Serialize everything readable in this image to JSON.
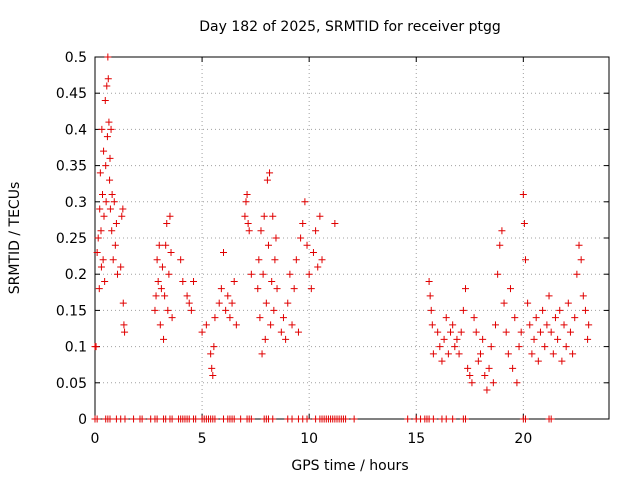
{
  "chart_data": {
    "type": "scatter",
    "title": "Day 182 of 2025, SRMTID for receiver ptgg",
    "xlabel": "GPS time / hours",
    "ylabel": "SRMTID / TECUs",
    "xlim": [
      0,
      24
    ],
    "ylim": [
      0,
      0.5
    ],
    "xticks": [
      0,
      5,
      10,
      15,
      20
    ],
    "xtick_labels": [
      "0",
      "5",
      "10",
      "15",
      "20"
    ],
    "yticks": [
      0,
      0.05,
      0.1,
      0.15,
      0.2,
      0.25,
      0.3,
      0.35,
      0.4,
      0.45,
      0.5
    ],
    "ytick_labels": [
      "0",
      "0.05",
      "0.1",
      "0.15",
      "0.2",
      "0.25",
      "0.3",
      "0.35",
      "0.4",
      "0.45",
      "0.5"
    ],
    "grid": true,
    "marker": "+",
    "color": "#e00000",
    "series": [
      {
        "name": "SRMTID",
        "points": [
          [
            0.0,
            0.1
          ],
          [
            0.05,
            0.1
          ],
          [
            0.1,
            0.23
          ],
          [
            0.15,
            0.25
          ],
          [
            0.2,
            0.18
          ],
          [
            0.22,
            0.29
          ],
          [
            0.25,
            0.34
          ],
          [
            0.28,
            0.26
          ],
          [
            0.3,
            0.21
          ],
          [
            0.32,
            0.4
          ],
          [
            0.35,
            0.31
          ],
          [
            0.38,
            0.22
          ],
          [
            0.4,
            0.37
          ],
          [
            0.42,
            0.28
          ],
          [
            0.45,
            0.19
          ],
          [
            0.48,
            0.44
          ],
          [
            0.5,
            0.35
          ],
          [
            0.52,
            0.3
          ],
          [
            0.55,
            0.46
          ],
          [
            0.58,
            0.39
          ],
          [
            0.6,
            0.5
          ],
          [
            0.62,
            0.47
          ],
          [
            0.65,
            0.41
          ],
          [
            0.68,
            0.33
          ],
          [
            0.7,
            0.36
          ],
          [
            0.72,
            0.29
          ],
          [
            0.75,
            0.4
          ],
          [
            0.78,
            0.26
          ],
          [
            0.8,
            0.31
          ],
          [
            0.85,
            0.22
          ],
          [
            0.9,
            0.3
          ],
          [
            0.95,
            0.24
          ],
          [
            1.0,
            0.27
          ],
          [
            1.05,
            0.2
          ],
          [
            1.2,
            0.21
          ],
          [
            1.25,
            0.28
          ],
          [
            1.3,
            0.29
          ],
          [
            1.32,
            0.16
          ],
          [
            1.35,
            0.13
          ],
          [
            1.38,
            0.12
          ],
          [
            2.8,
            0.15
          ],
          [
            2.85,
            0.17
          ],
          [
            2.9,
            0.22
          ],
          [
            2.95,
            0.19
          ],
          [
            3.0,
            0.24
          ],
          [
            3.05,
            0.13
          ],
          [
            3.1,
            0.18
          ],
          [
            3.15,
            0.21
          ],
          [
            3.2,
            0.11
          ],
          [
            3.25,
            0.17
          ],
          [
            3.3,
            0.24
          ],
          [
            3.35,
            0.27
          ],
          [
            3.4,
            0.15
          ],
          [
            3.45,
            0.2
          ],
          [
            3.5,
            0.28
          ],
          [
            3.55,
            0.23
          ],
          [
            3.6,
            0.14
          ],
          [
            4.0,
            0.22
          ],
          [
            4.1,
            0.19
          ],
          [
            4.3,
            0.17
          ],
          [
            4.4,
            0.16
          ],
          [
            4.5,
            0.15
          ],
          [
            4.6,
            0.19
          ],
          [
            5.0,
            0.12
          ],
          [
            5.2,
            0.13
          ],
          [
            5.4,
            0.09
          ],
          [
            5.45,
            0.07
          ],
          [
            5.5,
            0.06
          ],
          [
            5.55,
            0.1
          ],
          [
            5.6,
            0.14
          ],
          [
            5.8,
            0.16
          ],
          [
            5.9,
            0.18
          ],
          [
            6.0,
            0.23
          ],
          [
            6.1,
            0.15
          ],
          [
            6.2,
            0.17
          ],
          [
            6.3,
            0.14
          ],
          [
            6.4,
            0.16
          ],
          [
            6.5,
            0.19
          ],
          [
            6.6,
            0.13
          ],
          [
            7.0,
            0.28
          ],
          [
            7.05,
            0.3
          ],
          [
            7.1,
            0.31
          ],
          [
            7.15,
            0.27
          ],
          [
            7.2,
            0.26
          ],
          [
            7.3,
            0.2
          ],
          [
            7.6,
            0.18
          ],
          [
            7.65,
            0.22
          ],
          [
            7.7,
            0.14
          ],
          [
            7.75,
            0.26
          ],
          [
            7.8,
            0.09
          ],
          [
            7.85,
            0.2
          ],
          [
            7.9,
            0.28
          ],
          [
            7.95,
            0.11
          ],
          [
            8.0,
            0.16
          ],
          [
            8.05,
            0.33
          ],
          [
            8.1,
            0.24
          ],
          [
            8.15,
            0.34
          ],
          [
            8.2,
            0.13
          ],
          [
            8.25,
            0.19
          ],
          [
            8.3,
            0.28
          ],
          [
            8.35,
            0.15
          ],
          [
            8.4,
            0.22
          ],
          [
            8.45,
            0.25
          ],
          [
            8.5,
            0.18
          ],
          [
            8.7,
            0.12
          ],
          [
            8.8,
            0.14
          ],
          [
            8.9,
            0.11
          ],
          [
            9.0,
            0.16
          ],
          [
            9.1,
            0.2
          ],
          [
            9.2,
            0.13
          ],
          [
            9.3,
            0.18
          ],
          [
            9.4,
            0.22
          ],
          [
            9.5,
            0.12
          ],
          [
            9.6,
            0.25
          ],
          [
            9.7,
            0.27
          ],
          [
            9.8,
            0.3
          ],
          [
            9.9,
            0.24
          ],
          [
            10.0,
            0.2
          ],
          [
            10.1,
            0.18
          ],
          [
            10.2,
            0.23
          ],
          [
            10.3,
            0.26
          ],
          [
            10.4,
            0.21
          ],
          [
            10.5,
            0.28
          ],
          [
            10.6,
            0.22
          ],
          [
            11.2,
            0.27
          ],
          [
            15.6,
            0.19
          ],
          [
            15.65,
            0.17
          ],
          [
            15.7,
            0.15
          ],
          [
            15.75,
            0.13
          ],
          [
            15.8,
            0.09
          ],
          [
            16.0,
            0.12
          ],
          [
            16.1,
            0.1
          ],
          [
            16.2,
            0.08
          ],
          [
            16.3,
            0.11
          ],
          [
            16.4,
            0.14
          ],
          [
            16.5,
            0.09
          ],
          [
            16.6,
            0.12
          ],
          [
            16.7,
            0.13
          ],
          [
            16.8,
            0.1
          ],
          [
            16.9,
            0.11
          ],
          [
            17.0,
            0.09
          ],
          [
            17.1,
            0.12
          ],
          [
            17.2,
            0.15
          ],
          [
            17.3,
            0.18
          ],
          [
            17.4,
            0.07
          ],
          [
            17.5,
            0.06
          ],
          [
            17.6,
            0.05
          ],
          [
            17.7,
            0.14
          ],
          [
            17.8,
            0.12
          ],
          [
            17.9,
            0.08
          ],
          [
            18.0,
            0.09
          ],
          [
            18.1,
            0.11
          ],
          [
            18.2,
            0.06
          ],
          [
            18.3,
            0.04
          ],
          [
            18.4,
            0.07
          ],
          [
            18.5,
            0.1
          ],
          [
            18.6,
            0.05
          ],
          [
            18.7,
            0.13
          ],
          [
            18.8,
            0.2
          ],
          [
            18.9,
            0.24
          ],
          [
            19.0,
            0.26
          ],
          [
            19.1,
            0.16
          ],
          [
            19.2,
            0.12
          ],
          [
            19.3,
            0.09
          ],
          [
            19.4,
            0.18
          ],
          [
            19.5,
            0.07
          ],
          [
            19.6,
            0.14
          ],
          [
            19.7,
            0.05
          ],
          [
            19.8,
            0.1
          ],
          [
            19.9,
            0.12
          ],
          [
            20.0,
            0.31
          ],
          [
            20.05,
            0.27
          ],
          [
            20.1,
            0.22
          ],
          [
            20.2,
            0.16
          ],
          [
            20.3,
            0.13
          ],
          [
            20.4,
            0.09
          ],
          [
            20.5,
            0.11
          ],
          [
            20.6,
            0.14
          ],
          [
            20.7,
            0.08
          ],
          [
            20.8,
            0.12
          ],
          [
            20.9,
            0.15
          ],
          [
            21.0,
            0.1
          ],
          [
            21.1,
            0.13
          ],
          [
            21.2,
            0.17
          ],
          [
            21.3,
            0.12
          ],
          [
            21.4,
            0.09
          ],
          [
            21.5,
            0.14
          ],
          [
            21.6,
            0.11
          ],
          [
            21.7,
            0.15
          ],
          [
            21.8,
            0.08
          ],
          [
            21.9,
            0.13
          ],
          [
            22.0,
            0.1
          ],
          [
            22.1,
            0.16
          ],
          [
            22.2,
            0.12
          ],
          [
            22.3,
            0.09
          ],
          [
            22.4,
            0.14
          ],
          [
            22.5,
            0.2
          ],
          [
            22.6,
            0.24
          ],
          [
            22.7,
            0.22
          ],
          [
            22.8,
            0.17
          ],
          [
            22.9,
            0.15
          ],
          [
            23.0,
            0.11
          ],
          [
            23.05,
            0.13
          ]
        ],
        "zero_points_x": [
          0.0,
          0.1,
          0.5,
          0.6,
          0.7,
          1.0,
          1.2,
          1.4,
          1.8,
          2.1,
          2.2,
          2.6,
          2.8,
          2.9,
          3.2,
          3.3,
          3.5,
          3.6,
          3.9,
          4.0,
          4.1,
          4.2,
          4.3,
          4.4,
          4.6,
          4.7,
          5.0,
          5.1,
          5.2,
          5.3,
          5.4,
          5.5,
          5.6,
          6.0,
          6.2,
          6.3,
          6.4,
          6.5,
          6.8,
          7.1,
          7.2,
          7.3,
          7.9,
          8.0,
          8.1,
          8.3,
          9.0,
          9.2,
          9.5,
          9.7,
          9.9,
          10.3,
          10.5,
          10.6,
          10.7,
          10.8,
          10.9,
          11.0,
          11.1,
          11.2,
          11.3,
          11.4,
          11.5,
          11.6,
          11.7,
          12.1,
          14.6,
          15.0,
          15.2,
          15.4,
          15.5,
          15.6,
          15.8,
          16.2,
          16.4,
          16.7,
          17.2,
          17.3,
          20.0,
          20.1,
          21.2,
          21.3
        ]
      }
    ]
  }
}
